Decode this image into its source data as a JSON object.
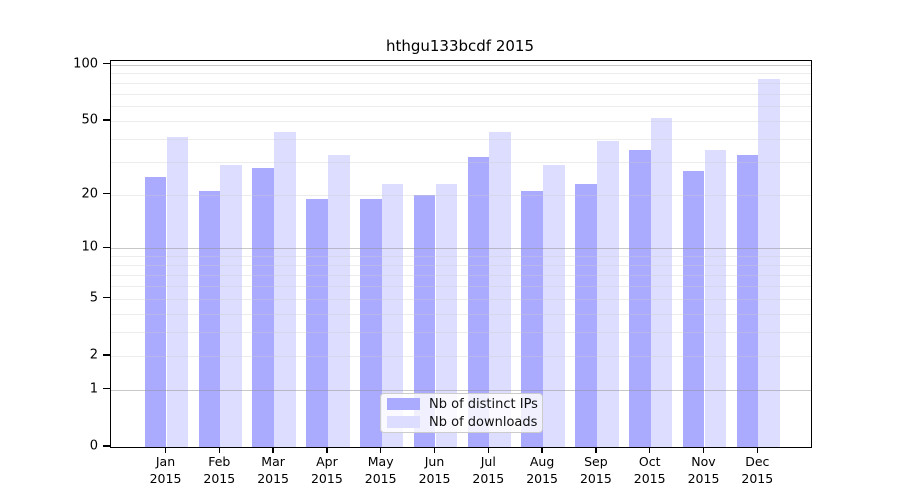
{
  "title": "hthgu133bcdf 2015",
  "legend": {
    "items": [
      {
        "label": "Nb of distinct IPs",
        "color": "#aaaaff"
      },
      {
        "label": "Nb of downloads",
        "color": "#ddddff"
      }
    ],
    "position": "bottom-center"
  },
  "colors": {
    "distinct_ips_bar": "#aaaaff",
    "downloads_bar": "#ddddff",
    "axis": "#000000",
    "grid_minor": "#ececec",
    "grid_major": "#c6c6c6",
    "background": "#ffffff"
  },
  "chart_data": {
    "type": "bar",
    "title": "hthgu133bcdf 2015",
    "categories": [
      "Jan",
      "Feb",
      "Mar",
      "Apr",
      "May",
      "Jun",
      "Jul",
      "Aug",
      "Sep",
      "Oct",
      "Nov",
      "Dec"
    ],
    "x_year": "2015",
    "series": [
      {
        "name": "Nb of distinct IPs",
        "color": "#aaaaff",
        "values": [
          25,
          21,
          28,
          19,
          19,
          20,
          32,
          21,
          23,
          35,
          27,
          33
        ]
      },
      {
        "name": "Nb of downloads",
        "color": "#ddddff",
        "values": [
          41,
          29,
          44,
          33,
          23,
          23,
          44,
          29,
          39,
          52,
          35,
          84
        ]
      }
    ],
    "xlabel": "",
    "ylabel": "",
    "y_scale": "log10(1+x)",
    "y_ticks": [
      100,
      50,
      20,
      10,
      5,
      2,
      1,
      0
    ],
    "ylim": [
      0,
      100
    ],
    "grid": "horizontal, minor and major log gridlines drawn over bars",
    "legend_position": "bottom-center inside plot"
  }
}
